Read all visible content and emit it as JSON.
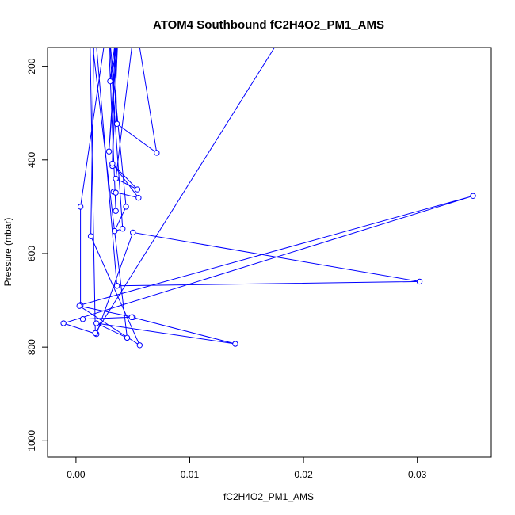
{
  "chart_data": {
    "type": "line",
    "title": "ATOM4 Southbound fC2H4O2_PM1_AMS",
    "xlabel": "fC2H4O2_PM1_AMS",
    "ylabel": "Pressure (mbar)",
    "xlim": [
      -0.0025,
      0.0365
    ],
    "ylim": [
      1035,
      160
    ],
    "y_inverted": true,
    "x_ticks": [
      0.0,
      0.01,
      0.02,
      0.03
    ],
    "x_tick_labels": [
      "0.00",
      "0.01",
      "0.02",
      "0.03"
    ],
    "y_ticks": [
      200,
      400,
      600,
      800,
      1000
    ],
    "y_tick_labels": [
      "200",
      "400",
      "600",
      "800",
      "1000"
    ],
    "grid": false,
    "series": [
      {
        "color": "#0000ff",
        "marker": "open-circle",
        "points": [
          {
            "x": 0.0041,
            "y": 100
          },
          {
            "x": 0.003,
            "y": 232
          },
          {
            "x": 0.0036,
            "y": 120
          },
          {
            "x": 0.0029,
            "y": 382
          },
          {
            "x": 0.0037,
            "y": 130
          },
          {
            "x": 0.0032,
            "y": 413
          },
          {
            "x": 0.0034,
            "y": 150
          },
          {
            "x": 0.0036,
            "y": 323
          },
          {
            "x": 0.0071,
            "y": 385
          },
          {
            "x": 0.0052,
            "y": 100
          },
          {
            "x": 0.0035,
            "y": 440
          },
          {
            "x": 0.0054,
            "y": 463
          },
          {
            "x": 0.0032,
            "y": 408
          },
          {
            "x": 0.0055,
            "y": 481
          },
          {
            "x": 0.0033,
            "y": 468
          },
          {
            "x": 0.0035,
            "y": 470
          },
          {
            "x": 0.0035,
            "y": 509
          },
          {
            "x": 0.0028,
            "y": 100
          },
          {
            "x": 0.0041,
            "y": 547
          },
          {
            "x": 0.0034,
            "y": 552
          },
          {
            "x": 0.0044,
            "y": 500
          },
          {
            "x": 0.0028,
            "y": 100
          },
          {
            "x": 0.0004,
            "y": 500
          },
          {
            "x": 0.0004,
            "y": 710
          },
          {
            "x": 0.0349,
            "y": 477
          },
          {
            "x": -0.0011,
            "y": 749
          },
          {
            "x": 0.0018,
            "y": 772
          },
          {
            "x": 0.005,
            "y": 555
          },
          {
            "x": 0.0302,
            "y": 660
          },
          {
            "x": 0.0036,
            "y": 669
          },
          {
            "x": 0.0016,
            "y": 100
          },
          {
            "x": 0.0013,
            "y": 563
          },
          {
            "x": 0.0056,
            "y": 796
          },
          {
            "x": 0.0003,
            "y": 712
          },
          {
            "x": 0.005,
            "y": 736
          },
          {
            "x": 0.0006,
            "y": 740
          },
          {
            "x": 0.0049,
            "y": 736
          },
          {
            "x": 0.014,
            "y": 793
          },
          {
            "x": 0.0018,
            "y": 749
          },
          {
            "x": 0.0045,
            "y": 780
          },
          {
            "x": 0.0012,
            "y": 100
          },
          {
            "x": 0.0017,
            "y": 770
          },
          {
            "x": 0.019,
            "y": 100
          }
        ]
      }
    ]
  }
}
